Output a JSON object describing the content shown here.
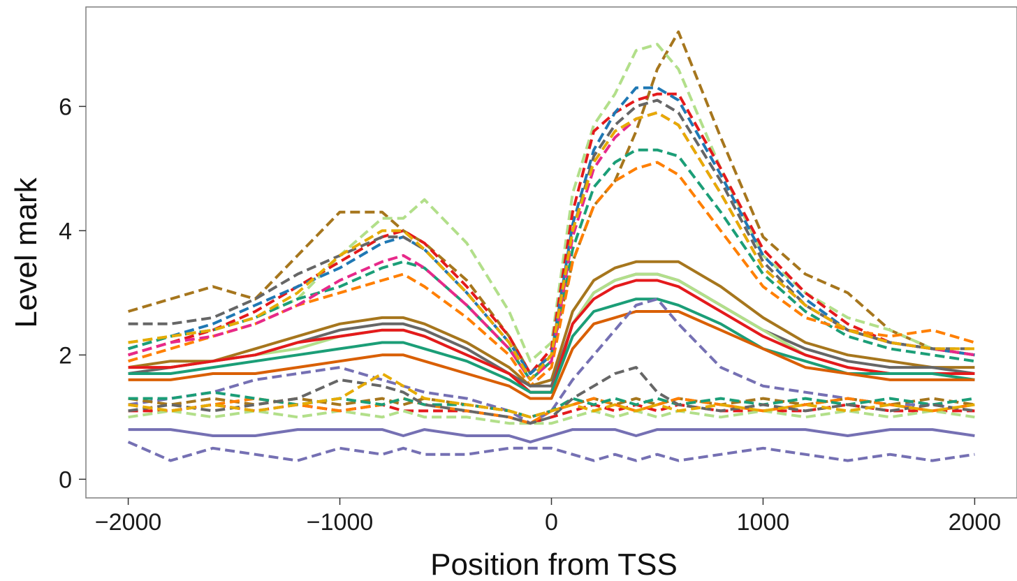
{
  "chart_data": {
    "type": "line",
    "title": "",
    "xlabel": "Position from TSS",
    "ylabel": "Level mark",
    "xlim": [
      -2200,
      2200
    ],
    "ylim": [
      -0.3,
      7.6
    ],
    "xticks": [
      -2000,
      -1000,
      0,
      1000,
      2000
    ],
    "xtick_labels": [
      "−2000",
      "−1000",
      "0",
      "1000",
      "2000"
    ],
    "yticks": [
      0,
      2,
      4,
      6
    ],
    "ytick_labels": [
      "0",
      "2",
      "4",
      "6"
    ],
    "grid": false,
    "legend": "none",
    "x": [
      -2000,
      -1800,
      -1600,
      -1400,
      -1200,
      -1000,
      -800,
      -700,
      -600,
      -400,
      -200,
      -100,
      0,
      100,
      200,
      300,
      400,
      500,
      600,
      800,
      1000,
      1200,
      1400,
      1600,
      1800,
      2000
    ],
    "series": [
      {
        "color": "#a6761d",
        "dash": true,
        "values": [
          2.7,
          2.9,
          3.1,
          2.9,
          3.6,
          4.3,
          4.3,
          4.0,
          3.8,
          3.2,
          2.3,
          1.7,
          2.0,
          3.5,
          4.4,
          4.8,
          5.6,
          6.6,
          7.2,
          5.5,
          3.9,
          3.3,
          3.0,
          2.4,
          2.1,
          2.0
        ]
      },
      {
        "color": "#b2df8a",
        "dash": true,
        "values": [
          2.2,
          2.3,
          2.4,
          2.6,
          2.9,
          3.6,
          4.2,
          4.2,
          4.5,
          3.8,
          2.7,
          1.9,
          2.2,
          4.6,
          5.7,
          6.2,
          6.9,
          7.0,
          6.6,
          5.0,
          3.6,
          3.0,
          2.6,
          2.4,
          2.1,
          2.0
        ]
      },
      {
        "color": "#e41a1c",
        "dash": true,
        "values": [
          2.0,
          2.2,
          2.4,
          2.7,
          3.1,
          3.5,
          3.9,
          4.0,
          3.8,
          3.1,
          2.3,
          1.7,
          2.1,
          4.3,
          5.6,
          5.9,
          6.1,
          6.2,
          6.2,
          5.0,
          3.7,
          3.0,
          2.5,
          2.2,
          2.1,
          2.0
        ]
      },
      {
        "color": "#1f78b4",
        "dash": true,
        "values": [
          2.1,
          2.3,
          2.5,
          2.8,
          3.1,
          3.4,
          3.8,
          3.9,
          3.7,
          3.0,
          2.2,
          1.7,
          2.0,
          4.1,
          5.3,
          5.9,
          6.3,
          6.3,
          6.1,
          4.9,
          3.6,
          2.9,
          2.4,
          2.2,
          2.1,
          2.0
        ]
      },
      {
        "color": "#666666",
        "dash": true,
        "values": [
          2.5,
          2.5,
          2.6,
          2.9,
          3.3,
          3.6,
          3.9,
          3.9,
          3.7,
          3.0,
          2.2,
          1.6,
          2.0,
          4.0,
          5.2,
          5.7,
          6.0,
          6.1,
          5.9,
          4.8,
          3.5,
          2.8,
          2.4,
          2.2,
          2.1,
          2.1
        ]
      },
      {
        "color": "#1b9e77",
        "dash": true,
        "values": [
          2.1,
          2.3,
          2.4,
          2.6,
          2.9,
          3.1,
          3.4,
          3.5,
          3.4,
          2.8,
          2.1,
          1.6,
          1.9,
          3.7,
          4.7,
          5.1,
          5.3,
          5.3,
          5.2,
          4.3,
          3.3,
          2.7,
          2.3,
          2.1,
          2.0,
          1.9
        ]
      },
      {
        "color": "#ff7f00",
        "dash": true,
        "values": [
          1.9,
          2.1,
          2.3,
          2.5,
          2.8,
          3.0,
          3.2,
          3.3,
          3.1,
          2.6,
          2.0,
          1.5,
          1.8,
          3.5,
          4.4,
          4.8,
          5.0,
          5.1,
          4.9,
          4.0,
          3.1,
          2.6,
          2.4,
          2.3,
          2.4,
          2.2
        ]
      },
      {
        "color": "#e7298a",
        "dash": true,
        "values": [
          2.0,
          2.2,
          2.3,
          2.5,
          2.8,
          3.2,
          3.5,
          3.6,
          3.4,
          2.8,
          2.1,
          1.6,
          1.9,
          3.9,
          5.0,
          5.5,
          5.8,
          5.9,
          5.7,
          4.6,
          3.4,
          2.8,
          2.4,
          2.2,
          2.1,
          2.0
        ]
      },
      {
        "color": "#e6ab02",
        "dash": true,
        "values": [
          2.2,
          2.3,
          2.4,
          2.6,
          3.0,
          3.6,
          4.0,
          4.0,
          3.7,
          3.0,
          2.2,
          1.6,
          2.0,
          4.0,
          5.1,
          5.6,
          5.8,
          5.9,
          5.7,
          4.6,
          3.4,
          2.8,
          2.4,
          2.2,
          2.1,
          2.1
        ]
      },
      {
        "color": "#a6761d",
        "dash": false,
        "values": [
          1.8,
          1.9,
          1.9,
          2.1,
          2.3,
          2.5,
          2.6,
          2.6,
          2.5,
          2.2,
          1.8,
          1.5,
          1.6,
          2.7,
          3.2,
          3.4,
          3.5,
          3.5,
          3.5,
          3.1,
          2.6,
          2.2,
          2.0,
          1.9,
          1.8,
          1.8
        ]
      },
      {
        "color": "#666666",
        "dash": false,
        "values": [
          1.7,
          1.8,
          1.9,
          2.0,
          2.2,
          2.4,
          2.5,
          2.5,
          2.4,
          2.1,
          1.7,
          1.5,
          1.5,
          2.5,
          3.0,
          3.2,
          3.3,
          3.3,
          3.2,
          2.8,
          2.4,
          2.1,
          1.9,
          1.8,
          1.8,
          1.7
        ]
      },
      {
        "color": "#b2df8a",
        "dash": false,
        "values": [
          1.8,
          1.8,
          1.9,
          2.0,
          2.1,
          2.3,
          2.4,
          2.4,
          2.3,
          2.0,
          1.7,
          1.4,
          1.4,
          2.5,
          3.0,
          3.2,
          3.3,
          3.3,
          3.2,
          2.8,
          2.4,
          2.0,
          1.8,
          1.7,
          1.7,
          1.7
        ]
      },
      {
        "color": "#e41a1c",
        "dash": false,
        "values": [
          1.8,
          1.8,
          1.9,
          2.0,
          2.2,
          2.3,
          2.4,
          2.4,
          2.3,
          2.0,
          1.7,
          1.4,
          1.4,
          2.5,
          2.9,
          3.1,
          3.2,
          3.2,
          3.1,
          2.7,
          2.3,
          2.0,
          1.8,
          1.7,
          1.7,
          1.7
        ]
      },
      {
        "color": "#1b9e77",
        "dash": false,
        "values": [
          1.7,
          1.7,
          1.8,
          1.9,
          2.0,
          2.1,
          2.2,
          2.2,
          2.1,
          1.9,
          1.6,
          1.4,
          1.4,
          2.3,
          2.7,
          2.8,
          2.9,
          2.9,
          2.8,
          2.5,
          2.1,
          1.9,
          1.7,
          1.7,
          1.7,
          1.6
        ]
      },
      {
        "color": "#d95f02",
        "dash": false,
        "values": [
          1.6,
          1.6,
          1.7,
          1.7,
          1.8,
          1.9,
          2.0,
          2.0,
          1.9,
          1.7,
          1.5,
          1.3,
          1.3,
          2.1,
          2.5,
          2.6,
          2.7,
          2.7,
          2.7,
          2.4,
          2.1,
          1.8,
          1.7,
          1.6,
          1.6,
          1.6
        ]
      },
      {
        "color": "#7570b3",
        "dash": true,
        "values": [
          1.2,
          1.3,
          1.4,
          1.6,
          1.7,
          1.8,
          1.6,
          1.5,
          1.4,
          1.3,
          1.1,
          0.9,
          1.1,
          1.6,
          2.0,
          2.4,
          2.8,
          2.9,
          2.5,
          1.8,
          1.5,
          1.4,
          1.3,
          1.2,
          1.2,
          1.1
        ]
      },
      {
        "color": "#a6761d",
        "dash": true,
        "values": [
          1.3,
          1.2,
          1.3,
          1.2,
          1.3,
          1.2,
          1.3,
          1.2,
          1.3,
          1.2,
          1.1,
          1.0,
          1.1,
          1.2,
          1.3,
          1.2,
          1.3,
          1.2,
          1.3,
          1.2,
          1.3,
          1.2,
          1.3,
          1.2,
          1.3,
          1.2
        ]
      },
      {
        "color": "#e41a1c",
        "dash": true,
        "values": [
          1.1,
          1.1,
          1.2,
          1.1,
          1.2,
          1.1,
          1.2,
          1.1,
          1.1,
          1.1,
          1.0,
          0.9,
          1.0,
          1.1,
          1.2,
          1.1,
          1.2,
          1.1,
          1.2,
          1.1,
          1.1,
          1.1,
          1.2,
          1.1,
          1.1,
          1.1
        ]
      },
      {
        "color": "#b2df8a",
        "dash": true,
        "values": [
          1.0,
          1.1,
          1.0,
          1.1,
          1.0,
          1.1,
          1.0,
          1.1,
          1.0,
          1.0,
          0.9,
          0.9,
          0.9,
          1.0,
          1.1,
          1.0,
          1.1,
          1.0,
          1.1,
          1.0,
          1.1,
          1.0,
          1.1,
          1.0,
          1.1,
          1.0
        ]
      },
      {
        "color": "#ff7f00",
        "dash": true,
        "values": [
          1.2,
          1.1,
          1.2,
          1.3,
          1.2,
          1.1,
          1.2,
          1.3,
          1.2,
          1.1,
          1.0,
          0.9,
          1.1,
          1.2,
          1.3,
          1.2,
          1.1,
          1.2,
          1.3,
          1.2,
          1.1,
          1.2,
          1.3,
          1.2,
          1.1,
          1.2
        ]
      },
      {
        "color": "#1b9e77",
        "dash": true,
        "values": [
          1.3,
          1.3,
          1.4,
          1.3,
          1.2,
          1.3,
          1.2,
          1.3,
          1.2,
          1.2,
          1.1,
          1.0,
          1.1,
          1.3,
          1.2,
          1.3,
          1.2,
          1.3,
          1.2,
          1.3,
          1.2,
          1.3,
          1.2,
          1.3,
          1.2,
          1.3
        ]
      },
      {
        "color": "#666666",
        "dash": true,
        "values": [
          1.1,
          1.2,
          1.1,
          1.2,
          1.3,
          1.6,
          1.5,
          1.4,
          1.2,
          1.1,
          1.0,
          0.9,
          1.0,
          1.3,
          1.5,
          1.7,
          1.8,
          1.4,
          1.2,
          1.1,
          1.2,
          1.1,
          1.2,
          1.1,
          1.2,
          1.1
        ]
      },
      {
        "color": "#e6ab02",
        "dash": true,
        "values": [
          1.2,
          1.1,
          1.2,
          1.1,
          1.2,
          1.3,
          1.7,
          1.5,
          1.3,
          1.2,
          1.1,
          1.0,
          1.1,
          1.2,
          1.1,
          1.2,
          1.1,
          1.2,
          1.1,
          1.2,
          1.1,
          1.2,
          1.1,
          1.2,
          1.1,
          1.2
        ]
      },
      {
        "color": "#7570b3",
        "dash": false,
        "values": [
          0.8,
          0.8,
          0.7,
          0.7,
          0.8,
          0.8,
          0.8,
          0.7,
          0.8,
          0.7,
          0.7,
          0.6,
          0.7,
          0.8,
          0.8,
          0.8,
          0.7,
          0.8,
          0.8,
          0.8,
          0.8,
          0.8,
          0.7,
          0.8,
          0.8,
          0.7
        ]
      },
      {
        "color": "#7570b3",
        "dash": true,
        "values": [
          0.6,
          0.3,
          0.5,
          0.4,
          0.3,
          0.5,
          0.4,
          0.5,
          0.4,
          0.4,
          0.5,
          0.5,
          0.5,
          0.4,
          0.3,
          0.4,
          0.3,
          0.4,
          0.3,
          0.4,
          0.5,
          0.4,
          0.3,
          0.4,
          0.3,
          0.4
        ]
      }
    ]
  }
}
